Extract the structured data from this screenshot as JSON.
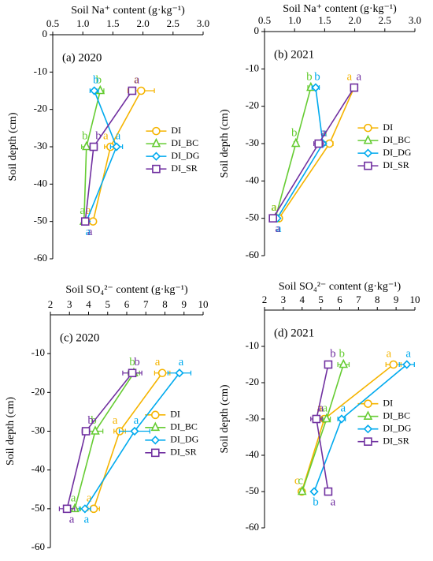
{
  "chart_data": [
    {
      "type": "line",
      "title": "Soil Na⁺ content (g·kg⁻¹)",
      "panel": "(a)  2020",
      "ylabel": "Soil depth (cm)",
      "xlim": [
        0.5,
        3.0
      ],
      "xticks": [
        0.5,
        {
          "value": 1,
          "label": "1.0"
        },
        1.5,
        {
          "value": 2,
          "label": "2.0"
        },
        2.5,
        {
          "value": 3,
          "label": "3.0"
        }
      ],
      "ylim": [
        -60,
        0
      ],
      "yticks": [
        0,
        -10,
        -20,
        -30,
        -40,
        -50,
        -60
      ],
      "legend": "right",
      "y": [
        -15,
        -30,
        -50
      ],
      "series": [
        {
          "name": "DI",
          "color": "#f5b400",
          "marker": "circle",
          "x": [
            1.97,
            1.46,
            1.17
          ],
          "errors": [
            0.22,
            0.1,
            0.05
          ],
          "labels": [
            "a",
            "a",
            "a"
          ]
        },
        {
          "name": "DI_BC",
          "color": "#66cc33",
          "marker": "triangle",
          "x": [
            1.29,
            1.06,
            1.02
          ],
          "errors": [
            0.06,
            0.08,
            0.04
          ],
          "labels": [
            "b",
            "b",
            "a"
          ]
        },
        {
          "name": "DI_DG",
          "color": "#00aaee",
          "marker": "diamond",
          "x": [
            1.19,
            1.56,
            1.06
          ],
          "errors": [
            0.07,
            0.1,
            0.04
          ],
          "labels": [
            "b",
            "a",
            "a"
          ]
        },
        {
          "name": "DI_SR",
          "color": "#7030a0",
          "marker": "square",
          "x": [
            1.82,
            1.18,
            1.04
          ],
          "errors": [
            0.06,
            0.06,
            0.04
          ],
          "labels": [
            "a",
            "b",
            "a"
          ]
        }
      ]
    },
    {
      "type": "line",
      "title": "Soil Na⁺ content (g·kg⁻¹)",
      "panel": "(b)  2021",
      "ylabel": "Soil depth (cm)",
      "xlim": [
        0.5,
        3.0
      ],
      "xticks": [
        0.5,
        {
          "value": 1,
          "label": "1.0"
        },
        1.5,
        {
          "value": 2,
          "label": "2.0"
        },
        2.5,
        {
          "value": 3,
          "label": "3.0"
        }
      ],
      "ylim": [
        -60,
        0
      ],
      "yticks": [
        0,
        -10,
        -20,
        -30,
        -40,
        -50,
        -60
      ],
      "legend": "right",
      "y": [
        -15,
        -30,
        -50
      ],
      "series": [
        {
          "name": "DI",
          "color": "#f5b400",
          "marker": "circle",
          "x": [
            1.99,
            1.58,
            0.74
          ],
          "errors": [
            0.05,
            0.06,
            0.04
          ],
          "labels": [
            "a",
            "a",
            "a"
          ]
        },
        {
          "name": "DI_BC",
          "color": "#66cc33",
          "marker": "triangle",
          "x": [
            1.27,
            1.02,
            0.68
          ],
          "errors": [
            0.05,
            0.03,
            0.03
          ],
          "labels": [
            "b",
            "b",
            "a"
          ]
        },
        {
          "name": "DI_DG",
          "color": "#00aaee",
          "marker": "diamond",
          "x": [
            1.35,
            1.47,
            0.71
          ],
          "errors": [
            0.06,
            0.05,
            0.03
          ],
          "labels": [
            "b",
            "a",
            "a"
          ]
        },
        {
          "name": "DI_SR",
          "color": "#7030a0",
          "marker": "square",
          "x": [
            1.99,
            1.4,
            0.64
          ],
          "errors": [
            0.04,
            0.08,
            0.03
          ],
          "labels": [
            "a",
            "a",
            "a"
          ]
        }
      ]
    },
    {
      "type": "line",
      "title": "Soil SO₄²⁻ content (g·kg⁻¹)",
      "panel": "(c)  2020",
      "ylabel": "Soil depth (cm)",
      "xlim": [
        2,
        10
      ],
      "xticks": [
        2,
        3,
        4,
        5,
        6,
        7,
        8,
        9,
        10
      ],
      "ylim": [
        -60,
        0
      ],
      "yticks": [
        -10,
        -20,
        -30,
        -40,
        -50,
        -60
      ],
      "legend": "right",
      "y": [
        -15,
        -30,
        -50
      ],
      "series": [
        {
          "name": "DI",
          "color": "#f5b400",
          "marker": "circle",
          "x": [
            7.86,
            5.63,
            4.27
          ],
          "errors": [
            0.4,
            0.3,
            0.3
          ],
          "labels": [
            "a",
            "a",
            "a"
          ]
        },
        {
          "name": "DI_BC",
          "color": "#66cc33",
          "marker": "triangle",
          "x": [
            6.37,
            4.35,
            3.28
          ],
          "errors": [
            0.3,
            0.4,
            0.3
          ],
          "labels": [
            "b",
            "b",
            "a"
          ]
        },
        {
          "name": "DI_DG",
          "color": "#00aaee",
          "marker": "diamond",
          "x": [
            8.76,
            6.41,
            3.81
          ],
          "errors": [
            0.6,
            0.8,
            0.3
          ],
          "labels": [
            "a",
            "a",
            "a"
          ]
        },
        {
          "name": "DI_SR",
          "color": "#7030a0",
          "marker": "square",
          "x": [
            6.29,
            3.86,
            2.87
          ],
          "errors": [
            0.5,
            0.2,
            0.4
          ],
          "labels": [
            "b",
            "b",
            "a"
          ]
        }
      ]
    },
    {
      "type": "line",
      "title": "Soil SO₄²⁻ content (g·kg⁻¹)",
      "panel": "(d)  2021",
      "ylabel": "Soil depth (cm)",
      "xlim": [
        2,
        10
      ],
      "xticks": [
        2,
        3,
        4,
        5,
        6,
        7,
        8,
        9,
        10
      ],
      "ylim": [
        -60,
        0
      ],
      "yticks": [
        -10,
        -20,
        -30,
        -40,
        -50,
        -60
      ],
      "legend": "right",
      "y": [
        -15,
        -30,
        -50
      ],
      "series": [
        {
          "name": "DI",
          "color": "#f5b400",
          "marker": "circle",
          "x": [
            8.86,
            5.18,
            3.98
          ],
          "errors": [
            0.4,
            0.2,
            0.1
          ],
          "labels": [
            "a",
            "a",
            "c"
          ]
        },
        {
          "name": "DI_BC",
          "color": "#66cc33",
          "marker": "triangle",
          "x": [
            6.2,
            5.3,
            4.0
          ],
          "errors": [
            0.3,
            0.2,
            0.1
          ],
          "labels": [
            "b",
            "a",
            "c"
          ]
        },
        {
          "name": "DI_DG",
          "color": "#00aaee",
          "marker": "diamond",
          "x": [
            9.57,
            6.1,
            4.64
          ],
          "errors": [
            0.4,
            0.2,
            0.1
          ],
          "labels": [
            "a",
            "a",
            "b"
          ]
        },
        {
          "name": "DI_SR",
          "color": "#7030a0",
          "marker": "square",
          "x": [
            5.39,
            4.76,
            5.39
          ],
          "errors": [
            0.1,
            0.3,
            0.1
          ],
          "labels": [
            "b",
            "a",
            "a"
          ]
        }
      ]
    }
  ]
}
